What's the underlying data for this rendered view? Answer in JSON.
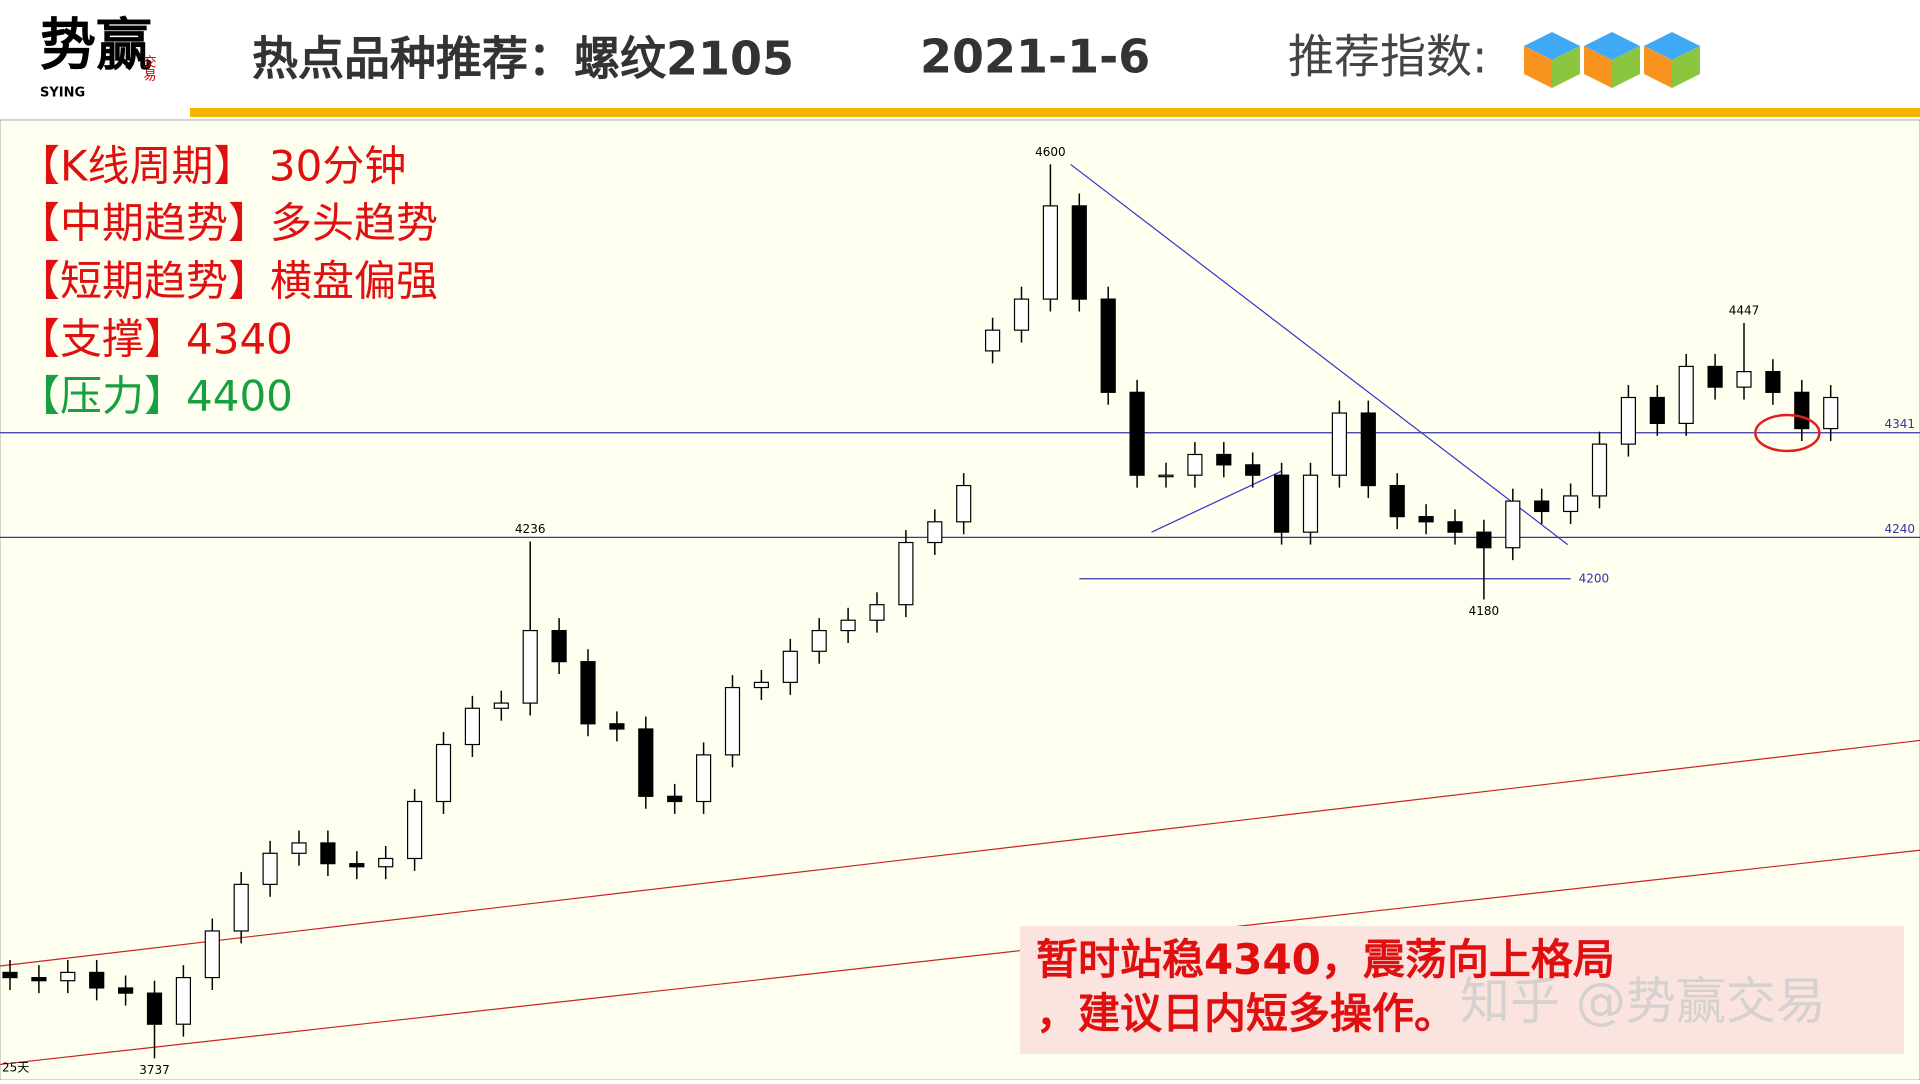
{
  "header": {
    "logo": "势赢",
    "logo_sub": "SYING",
    "logo_seal": "交易",
    "title": "热点品种推荐：螺纹2105",
    "date": "2021-1-6",
    "rating_label": "推荐指数:"
  },
  "info": [
    "【K线周期】 30分钟",
    "【中期趋势】多头趋势",
    "【短期趋势】横盘偏强",
    "【支撑】4340",
    "【压力】4400"
  ],
  "note": "暂时站稳4340，震荡向上格局，建议日内短多操作。",
  "watermark": "知乎 @势赢交易",
  "chart_data": {
    "type": "candlestick",
    "ylim": [
      3720,
      4640
    ],
    "up_color": "#ffffff",
    "down_color": "#000000",
    "open": [
      3820,
      3815,
      3812,
      3820,
      3805,
      3800,
      3770,
      3815,
      3860,
      3905,
      3935,
      3945,
      3925,
      3922,
      3930,
      3985,
      4040,
      4075,
      4080,
      4150,
      4120,
      4060,
      4055,
      3990,
      3985,
      4030,
      4095,
      4100,
      4130,
      4150,
      4160,
      4175,
      4235,
      4255,
      4420,
      4440,
      4470,
      4560,
      4470,
      4380,
      4300,
      4300,
      4320,
      4310,
      4300,
      4245,
      4300,
      4360,
      4290,
      4260,
      4255,
      4245,
      4230,
      4275,
      4265,
      4280,
      4330,
      4375,
      4350,
      4405,
      4385,
      4400,
      4380,
      4345
    ],
    "high": [
      3832,
      3827,
      3832,
      3832,
      3817,
      3812,
      3827,
      3872,
      3917,
      3947,
      3957,
      3957,
      3937,
      3942,
      3997,
      4052,
      4087,
      4092,
      4236,
      4162,
      4132,
      4072,
      4067,
      4002,
      4042,
      4107,
      4112,
      4142,
      4162,
      4172,
      4187,
      4247,
      4267,
      4302,
      4452,
      4482,
      4600,
      4572,
      4482,
      4392,
      4312,
      4332,
      4332,
      4322,
      4312,
      4312,
      4372,
      4372,
      4302,
      4272,
      4267,
      4257,
      4287,
      4287,
      4292,
      4342,
      4387,
      4387,
      4417,
      4417,
      4447,
      4412,
      4392,
      4387
    ],
    "low": [
      3803,
      3800,
      3800,
      3793,
      3788,
      3737,
      3758,
      3803,
      3848,
      3893,
      3923,
      3913,
      3910,
      3910,
      3918,
      3973,
      4028,
      4063,
      4068,
      4108,
      4048,
      4043,
      3978,
      3973,
      3973,
      4018,
      4083,
      4088,
      4118,
      4138,
      4148,
      4163,
      4223,
      4243,
      4408,
      4428,
      4458,
      4458,
      4368,
      4288,
      4288,
      4288,
      4298,
      4288,
      4233,
      4233,
      4288,
      4278,
      4248,
      4243,
      4233,
      4180,
      4218,
      4253,
      4253,
      4268,
      4318,
      4338,
      4338,
      4373,
      4373,
      4368,
      4333,
      4333
    ],
    "close": [
      3815,
      3812,
      3820,
      3805,
      3800,
      3770,
      3815,
      3860,
      3905,
      3935,
      3945,
      3925,
      3922,
      3930,
      3985,
      4040,
      4075,
      4080,
      4150,
      4120,
      4060,
      4055,
      3990,
      3985,
      4030,
      4095,
      4100,
      4130,
      4150,
      4160,
      4175,
      4235,
      4255,
      4290,
      4440,
      4470,
      4560,
      4470,
      4380,
      4300,
      4300,
      4320,
      4310,
      4300,
      4245,
      4300,
      4360,
      4290,
      4260,
      4255,
      4245,
      4230,
      4275,
      4265,
      4280,
      4330,
      4375,
      4350,
      4405,
      4385,
      4400,
      4380,
      4345,
      4375
    ],
    "point_labels": [
      {
        "index": 36,
        "value": 4600
      },
      {
        "index": 18,
        "value": 4236
      },
      {
        "index": 5,
        "value": 3737
      },
      {
        "index": 51,
        "value": 4180
      },
      {
        "index": 60,
        "value": 4447
      }
    ],
    "levels": [
      {
        "value": 4341,
        "color": "#3333aa"
      },
      {
        "value": 4240,
        "color": "#3333aa"
      },
      {
        "value": 4200,
        "color": "#3333aa",
        "x": [
          37,
          54
        ]
      }
    ],
    "trendlines": [
      {
        "color": "#3333cc",
        "x": [
          36.7,
          53.9
        ],
        "y": [
          4600,
          4233
        ]
      },
      {
        "color": "#3333cc",
        "x": [
          39.5,
          44
        ],
        "y": [
          4245,
          4304
        ]
      },
      {
        "color": "#cc2222",
        "x": [
          -0.4,
          66.1
        ],
        "y": [
          3826,
          4044
        ]
      },
      {
        "color": "#cc2222",
        "x": [
          -0.4,
          66.1
        ],
        "y": [
          3731,
          3938
        ]
      }
    ],
    "footer_label": "25天"
  }
}
